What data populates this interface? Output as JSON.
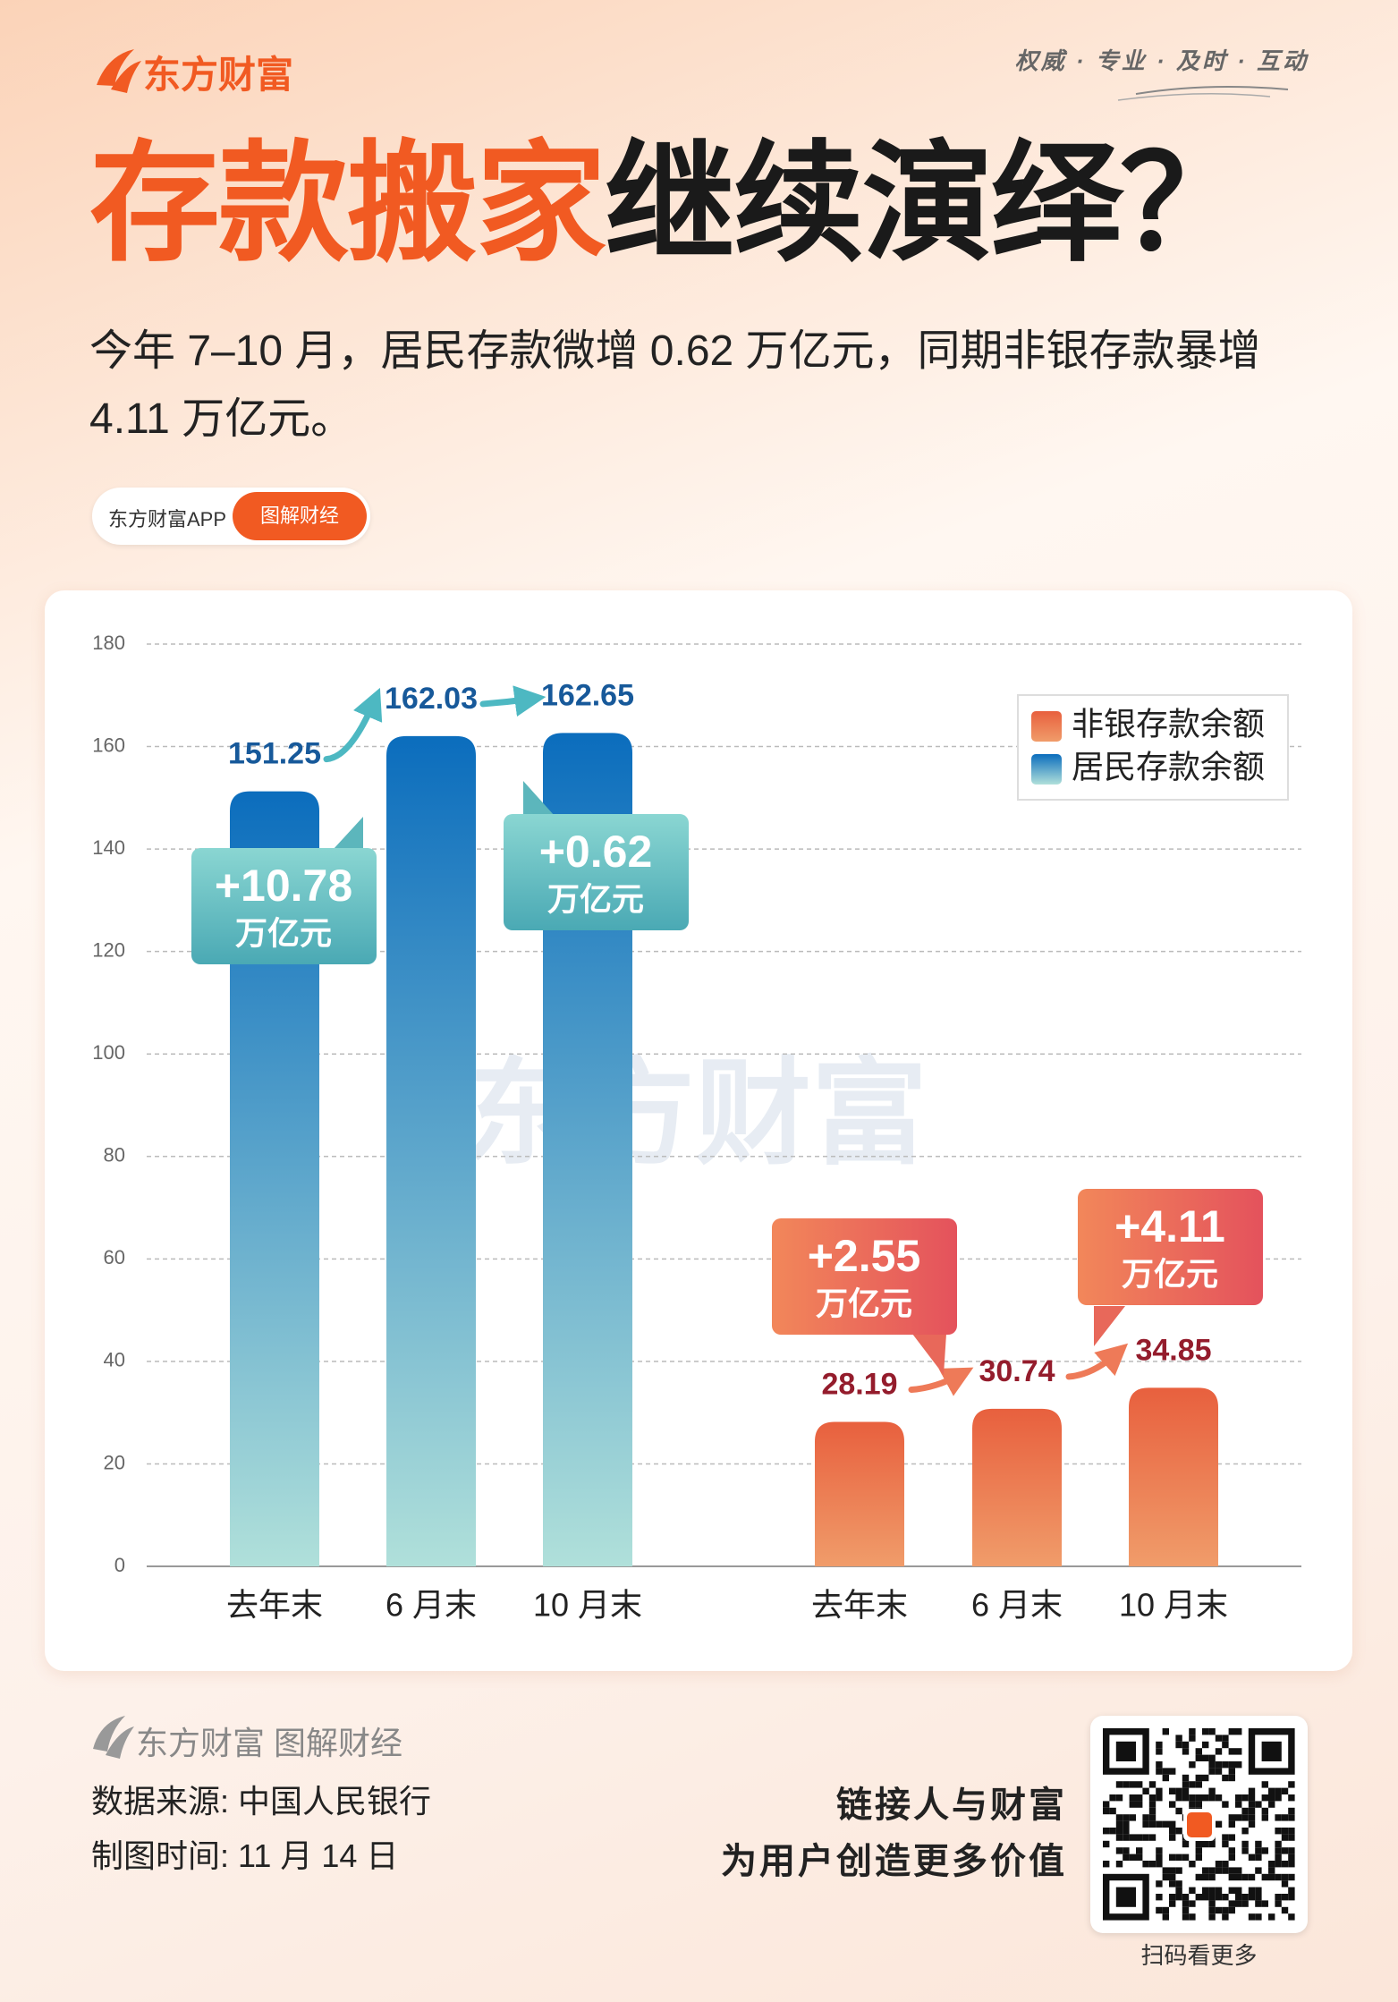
{
  "header": {
    "brand": "东方财富",
    "motto": "权威 · 专业 · 及时 · 互动",
    "title_highlight": "存款搬家",
    "title_rest": "继续演绎？",
    "subtitle": "今年 7–10 月，居民存款微增 0.62 万亿元，同期非银存款暴增 4.11 万亿元。"
  },
  "tag": {
    "app": "东方财富APP",
    "button": "图解财经"
  },
  "chart_data": {
    "type": "bar",
    "categories": [
      "去年末",
      "6 月末",
      "10 月末"
    ],
    "series": [
      {
        "name": "居民存款余额",
        "color": "#0b6dbd",
        "values": [
          151.25,
          162.03,
          162.65
        ]
      },
      {
        "name": "非银存款余额",
        "color": "#e8603e",
        "values": [
          28.19,
          30.74,
          34.85
        ]
      }
    ],
    "ylim": [
      0,
      180
    ],
    "yticks": [
      0,
      20,
      40,
      60,
      80,
      100,
      120,
      140,
      160,
      180
    ],
    "grid": true,
    "legend": "top-right",
    "watermark": "东方财富",
    "annotations": [
      {
        "value": 10.78,
        "label": "+10.78",
        "unit": "万亿元"
      },
      {
        "value": 0.62,
        "label": "+0.62",
        "unit": "万亿元"
      },
      {
        "value": 2.55,
        "label": "+2.55",
        "unit": "万亿元"
      },
      {
        "value": 4.11,
        "label": "+4.11",
        "unit": "万亿元"
      }
    ]
  },
  "footer": {
    "brand": "东方财富 图解财经",
    "source": "数据来源: 中国人民银行",
    "date": "制图时间: 11 月 14 日",
    "slogan": [
      "链接人与财富",
      "为用户创造更多价值"
    ],
    "qr_caption": "扫码看更多"
  }
}
